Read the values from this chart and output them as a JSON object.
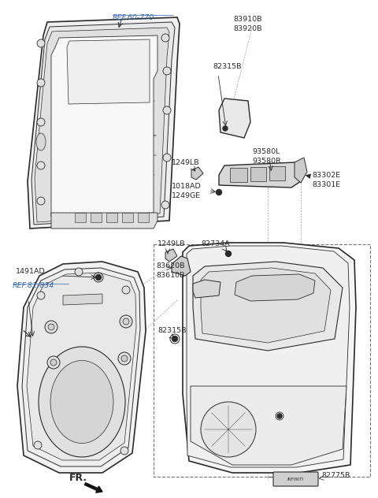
{
  "bg_color": "#ffffff",
  "line_color": "#2a2a2a",
  "label_color": "#2a2a2a",
  "ref_color": "#3366aa",
  "figsize": [
    4.8,
    6.32
  ],
  "dpi": 100,
  "labels": {
    "ref60770": "REF.60-770",
    "p83910": "83910B\n83920B",
    "p82315t": "82315B",
    "p93580": "93580L\n93580R",
    "p1249lb_m": "1249LB",
    "p1018ad": "1018AD\n1249GE",
    "p83302": "83302E\n83301E",
    "p1249lb_b": "1249LB",
    "p82734": "82734A",
    "p83620": "83620B\n83610B",
    "p82315b": "82315B",
    "p1491ad": "1491AD",
    "ref81834": "REF.81-834",
    "p82775": "82775B",
    "fr": "FR."
  }
}
